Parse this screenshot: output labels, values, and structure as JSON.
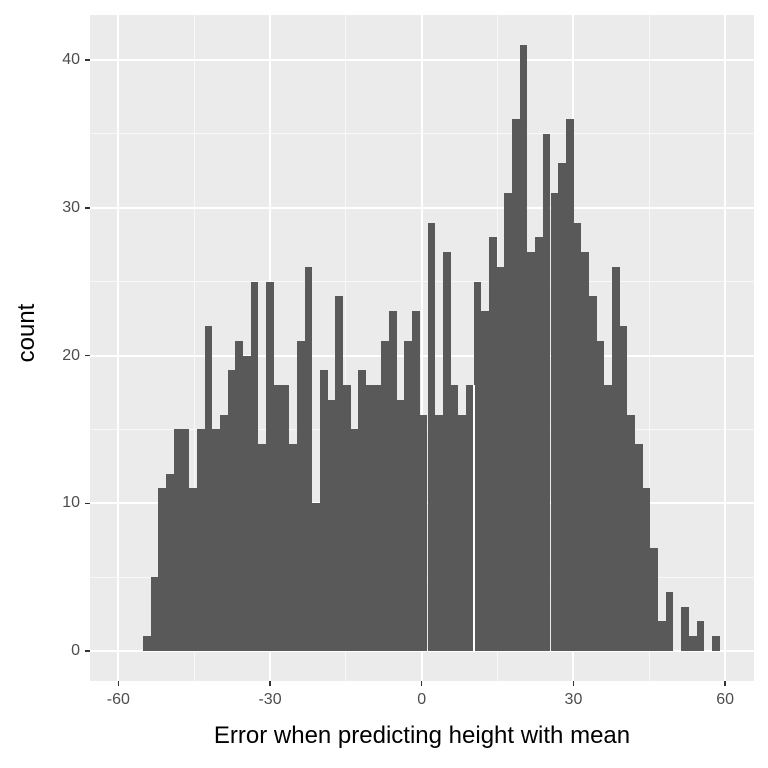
{
  "figure": {
    "background": "#FFFFFF",
    "panel_background": "#EBEBEB",
    "grid_color": "#FFFFFF",
    "tick_mark_color": "#333333",
    "tick_label_color": "#4D4D4D",
    "axis_title_color": "#000000"
  },
  "axes": {
    "x": {
      "title": "Error when predicting height with mean",
      "tick_labels": [
        "-60",
        "-30",
        "0",
        "30",
        "60"
      ],
      "tick_values": [
        -60,
        -30,
        0,
        30,
        60
      ],
      "minor_values": [
        -45,
        -15,
        15,
        45
      ],
      "range": [
        -65.6,
        65.7
      ]
    },
    "y": {
      "title": "count",
      "tick_labels": [
        "0",
        "10",
        "20",
        "30",
        "40"
      ],
      "tick_values": [
        0,
        10,
        20,
        30,
        40
      ],
      "minor_values": [
        5,
        15,
        25,
        35
      ],
      "range": [
        -2.03,
        43.05
      ]
    }
  },
  "chart_data": {
    "type": "bar",
    "subtype": "histogram",
    "title": "",
    "xlabel": "Error when predicting height with mean",
    "ylabel": "count",
    "xlim": [
      -65.6,
      65.7
    ],
    "ylim": [
      -2.03,
      43.05
    ],
    "grid": "on",
    "legend": "none",
    "bar_color": "#595959",
    "bin_start": -55.1,
    "bin_width": 1.52,
    "counts": [
      1,
      5,
      11,
      12,
      15,
      15,
      11,
      15,
      22,
      15,
      16,
      19,
      21,
      20,
      25,
      14,
      25,
      18,
      18,
      14,
      21,
      26,
      10,
      19,
      17,
      24,
      18,
      15,
      19,
      18,
      18,
      21,
      23,
      17,
      21,
      23,
      16,
      29,
      16,
      27,
      18,
      16,
      18,
      25,
      23,
      28,
      26,
      31,
      36,
      41,
      27,
      28,
      35,
      31,
      33,
      36,
      29,
      27,
      24,
      21,
      18,
      26,
      22,
      16,
      14,
      11,
      7,
      2,
      4,
      0,
      3,
      1,
      2,
      0,
      1
    ],
    "seam_after_bin": 42
  }
}
